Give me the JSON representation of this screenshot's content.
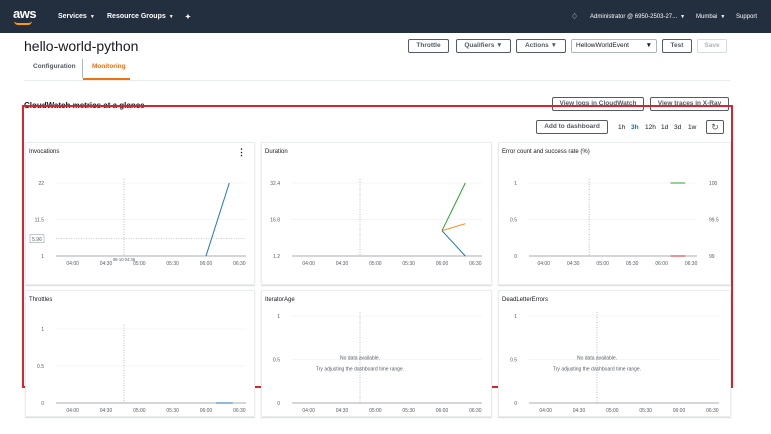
{
  "topnav": {
    "logo": "aws",
    "services": "Services",
    "resource_groups": "Resource Groups",
    "account": "Administrator @ 6950-2503-27...",
    "region": "Mumbai",
    "support": "Support"
  },
  "page": {
    "title": "hello-world-python",
    "throttle": "Throttle",
    "qualifiers": "Qualifiers",
    "actions": "Actions",
    "test_event": "HellowWorldEvent",
    "test": "Test",
    "save": "Save"
  },
  "tabs": [
    "Configuration",
    "Monitoring"
  ],
  "monitoring": {
    "heading": "CloudWatch metrics at a glance",
    "view_logs": "View logs in CloudWatch",
    "view_traces": "View traces in X-Ray",
    "add_dashboard": "Add to dashboard",
    "ranges": [
      "1h",
      "3h",
      "12h",
      "1d",
      "3d",
      "1w"
    ],
    "active_range": "3h"
  },
  "colors": {
    "nav_bg": "#232f3e",
    "accent": "#ec7211",
    "link": "#0073bb",
    "highlight": "#d9232e",
    "series_blue": "#1f77b4",
    "series_orange": "#ff7f0e",
    "series_green": "#2ca02c"
  },
  "chart_data": [
    {
      "type": "line",
      "title": "Invocations",
      "x": [
        "04:00",
        "04:30",
        "05:00",
        "05:30",
        "06:00",
        "06:30"
      ],
      "yticks": [
        "1",
        "11.5",
        "22"
      ],
      "ylim": [
        1,
        22
      ],
      "tooltip": "5.96",
      "hover_label": "08-10 04:46",
      "series": [
        {
          "color": "#1f77b4",
          "points": [
            [
              6.0,
              1
            ],
            [
              6.35,
              22
            ]
          ]
        }
      ]
    },
    {
      "type": "line",
      "title": "Duration",
      "x": [
        "04:00",
        "04:30",
        "05:00",
        "05:30",
        "06:00",
        "06:30"
      ],
      "yticks": [
        "1.2",
        "16.8",
        "32.4"
      ],
      "ylim": [
        1.2,
        32.4
      ],
      "series": [
        {
          "color": "#2ca02c",
          "points": [
            [
              6.0,
              12
            ],
            [
              6.35,
              32.4
            ]
          ]
        },
        {
          "color": "#ff7f0e",
          "points": [
            [
              6.0,
              12
            ],
            [
              6.35,
              15
            ]
          ]
        },
        {
          "color": "#1f77b4",
          "points": [
            [
              6.0,
              12
            ],
            [
              6.35,
              1.2
            ]
          ]
        }
      ]
    },
    {
      "type": "line",
      "title": "Error count and success rate (%)",
      "x": [
        "04:00",
        "04:30",
        "05:00",
        "05:30",
        "06:00",
        "06:30"
      ],
      "yticks": [
        "0",
        "0.5",
        "1"
      ],
      "ylim": [
        0,
        1
      ],
      "y2ticks": [
        "99",
        "99.5",
        "100"
      ],
      "y2lim": [
        99,
        100
      ],
      "series": [
        {
          "color": "#2ca02c",
          "axis": "right",
          "points": [
            [
              6.15,
              100
            ],
            [
              6.4,
              100
            ]
          ]
        },
        {
          "color": "#d62728",
          "axis": "left",
          "points": [
            [
              6.15,
              0
            ],
            [
              6.4,
              0
            ]
          ]
        }
      ]
    },
    {
      "type": "line",
      "title": "Throttles",
      "x": [
        "04:00",
        "04:30",
        "05:00",
        "05:30",
        "06:00",
        "06:30"
      ],
      "yticks": [
        "0",
        "0.5",
        "1"
      ],
      "ylim": [
        0,
        1
      ],
      "series": [
        {
          "color": "#1f77b4",
          "points": [
            [
              6.15,
              0
            ],
            [
              6.4,
              0
            ]
          ]
        }
      ]
    },
    {
      "type": "line",
      "title": "IteratorAge",
      "x": [
        "04:00",
        "04:30",
        "05:00",
        "05:30",
        "06:00",
        "06:30"
      ],
      "yticks": [
        "0",
        "0.5",
        "1"
      ],
      "ylim": [
        0,
        1
      ],
      "no_data": "No data available.",
      "no_data_hint": "Try adjusting the dashboard time range.",
      "series": []
    },
    {
      "type": "line",
      "title": "DeadLetterErrors",
      "x": [
        "04:00",
        "04:30",
        "05:00",
        "05:30",
        "06:00",
        "06:30"
      ],
      "yticks": [
        "0",
        "0.5",
        "1"
      ],
      "ylim": [
        0,
        1
      ],
      "no_data": "No data available.",
      "no_data_hint": "Try adjusting the dashboard time range.",
      "series": []
    }
  ]
}
